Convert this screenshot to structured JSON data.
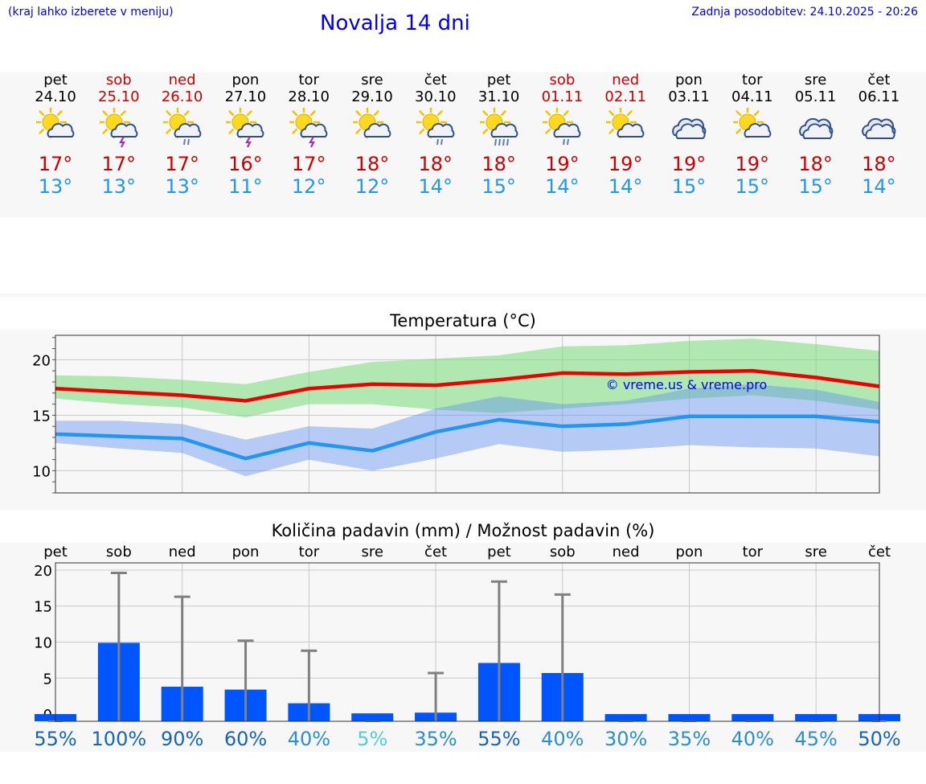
{
  "header": {
    "hint": "(kraj lahko izberete v meniju)",
    "title": "Novalja 14 dni",
    "updated": "Zadnja posodobitev: 24.10.2025 - 20:26"
  },
  "colors": {
    "link": "#0000ee",
    "tmax": "#cc0000",
    "tmin": "#2196f3",
    "weekend": "#cc0000",
    "bar": "#0055ff"
  },
  "days": [
    {
      "name": "pet",
      "date": "24.10",
      "weekend": false,
      "icon": "sun-cloud-icon",
      "tmax": "17°",
      "tmin": "13°"
    },
    {
      "name": "sob",
      "date": "25.10",
      "weekend": true,
      "icon": "sun-cloud-storm-icon",
      "tmax": "17°",
      "tmin": "13°"
    },
    {
      "name": "ned",
      "date": "26.10",
      "weekend": true,
      "icon": "sun-cloud-rain-icon",
      "tmax": "17°",
      "tmin": "13°"
    },
    {
      "name": "pon",
      "date": "27.10",
      "weekend": false,
      "icon": "sun-cloud-storm-icon",
      "tmax": "16°",
      "tmin": "11°"
    },
    {
      "name": "tor",
      "date": "28.10",
      "weekend": false,
      "icon": "sun-cloud-storm-icon",
      "tmax": "17°",
      "tmin": "12°"
    },
    {
      "name": "sre",
      "date": "29.10",
      "weekend": false,
      "icon": "sun-cloud-icon",
      "tmax": "18°",
      "tmin": "12°"
    },
    {
      "name": "čet",
      "date": "30.10",
      "weekend": false,
      "icon": "sun-cloud-rain-icon",
      "tmax": "18°",
      "tmin": "14°"
    },
    {
      "name": "pet",
      "date": "31.10",
      "weekend": false,
      "icon": "sun-cloud-heavy-rain-icon",
      "tmax": "18°",
      "tmin": "15°"
    },
    {
      "name": "sob",
      "date": "01.11",
      "weekend": true,
      "icon": "sun-cloud-rain-icon",
      "tmax": "19°",
      "tmin": "14°"
    },
    {
      "name": "ned",
      "date": "02.11",
      "weekend": true,
      "icon": "sun-cloud-icon",
      "tmax": "19°",
      "tmin": "14°"
    },
    {
      "name": "pon",
      "date": "03.11",
      "weekend": false,
      "icon": "cloud-icon",
      "tmax": "19°",
      "tmin": "15°"
    },
    {
      "name": "tor",
      "date": "04.11",
      "weekend": false,
      "icon": "sun-cloud-icon",
      "tmax": "19°",
      "tmin": "15°"
    },
    {
      "name": "sre",
      "date": "05.11",
      "weekend": false,
      "icon": "cloud-icon",
      "tmax": "18°",
      "tmin": "15°"
    },
    {
      "name": "čet",
      "date": "06.11",
      "weekend": false,
      "icon": "cloud-icon",
      "tmax": "18°",
      "tmin": "14°"
    }
  ],
  "chart_data": [
    {
      "type": "line",
      "title": "Temperatura (°C)",
      "watermark": "© vreme.us & vreme.pro",
      "categories": [
        "24.10",
        "25.10",
        "26.10",
        "27.10",
        "28.10",
        "29.10",
        "30.10",
        "31.10",
        "01.11",
        "02.11",
        "03.11",
        "04.11",
        "05.11",
        "06.11"
      ],
      "ylim": [
        8,
        22.2
      ],
      "yticks": [
        10,
        15,
        20
      ],
      "series": [
        {
          "name": "max",
          "values": [
            17.4,
            17.1,
            16.8,
            16.3,
            17.4,
            17.8,
            17.7,
            18.2,
            18.8,
            18.7,
            18.9,
            19.0,
            18.4,
            17.6
          ],
          "band_low": [
            16.5,
            16.0,
            15.7,
            14.8,
            16.0,
            16.0,
            15.5,
            15.2,
            15.6,
            16.0,
            16.5,
            16.8,
            16.3,
            15.5
          ],
          "band_high": [
            18.6,
            18.5,
            18.2,
            17.8,
            18.9,
            19.8,
            20.1,
            20.4,
            21.2,
            21.3,
            21.7,
            21.9,
            21.4,
            20.8
          ]
        },
        {
          "name": "min",
          "values": [
            13.3,
            13.1,
            12.9,
            11.1,
            12.5,
            11.8,
            13.5,
            14.6,
            14.0,
            14.2,
            14.9,
            14.9,
            14.9,
            14.4
          ],
          "band_low": [
            12.5,
            12.0,
            11.6,
            9.5,
            11.0,
            10.0,
            11.1,
            12.4,
            11.7,
            11.9,
            12.3,
            12.1,
            12.0,
            11.3
          ],
          "band_high": [
            14.5,
            14.5,
            14.2,
            12.8,
            14.0,
            13.8,
            15.6,
            16.7,
            16.0,
            16.3,
            17.4,
            17.8,
            17.3,
            16.2
          ]
        }
      ]
    },
    {
      "type": "bar",
      "title": "Količina padavin (mm) / Možnost padavin (%)",
      "categories": [
        "pet",
        "sob",
        "ned",
        "pon",
        "tor",
        "sre",
        "čet",
        "pet",
        "sob",
        "ned",
        "pon",
        "tor",
        "sre",
        "čet"
      ],
      "ylim": [
        -1,
        21
      ],
      "yticks": [
        0,
        5,
        10,
        15,
        20
      ],
      "values": [
        0,
        9.9,
        3.8,
        3.4,
        1.5,
        0.1,
        0.2,
        7.1,
        5.7,
        0,
        0,
        0,
        0,
        0
      ],
      "error_high": [
        0,
        19.6,
        16.3,
        10.2,
        8.8,
        0,
        5.7,
        18.4,
        16.6,
        0,
        0,
        0,
        0,
        0
      ],
      "probability": [
        "55%",
        "100%",
        "90%",
        "60%",
        "40%",
        "5%",
        "35%",
        "55%",
        "40%",
        "30%",
        "35%",
        "40%",
        "45%",
        "50%"
      ],
      "probability_values": [
        55,
        100,
        90,
        60,
        40,
        5,
        35,
        55,
        40,
        30,
        35,
        40,
        45,
        50
      ]
    }
  ]
}
